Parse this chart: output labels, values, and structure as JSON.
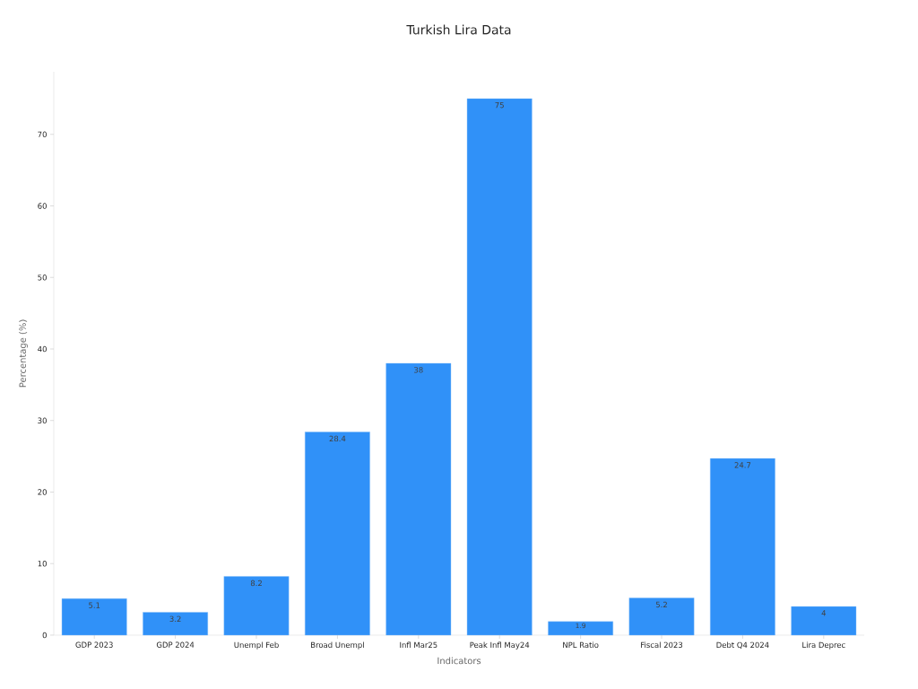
{
  "chart_data": {
    "type": "bar",
    "title": "Turkish Lira Data",
    "xlabel": "Indicators",
    "ylabel": "Percentage (%)",
    "categories": [
      "GDP 2023",
      "GDP 2024",
      "Unempl Feb",
      "Broad Unempl",
      "Infl Mar25",
      "Peak Infl May24",
      "NPL Ratio",
      "Fiscal 2023",
      "Debt Q4 2024",
      "Lira Deprec"
    ],
    "values": [
      5.1,
      3.2,
      8.2,
      28.4,
      38,
      75,
      1.9,
      5.2,
      24.7,
      4
    ],
    "color": "#3091f8",
    "ylim": [
      0,
      78.75
    ],
    "yticks": [
      0,
      10,
      20,
      30,
      40,
      50,
      60,
      70
    ],
    "data_labels": true,
    "grid": false
  }
}
